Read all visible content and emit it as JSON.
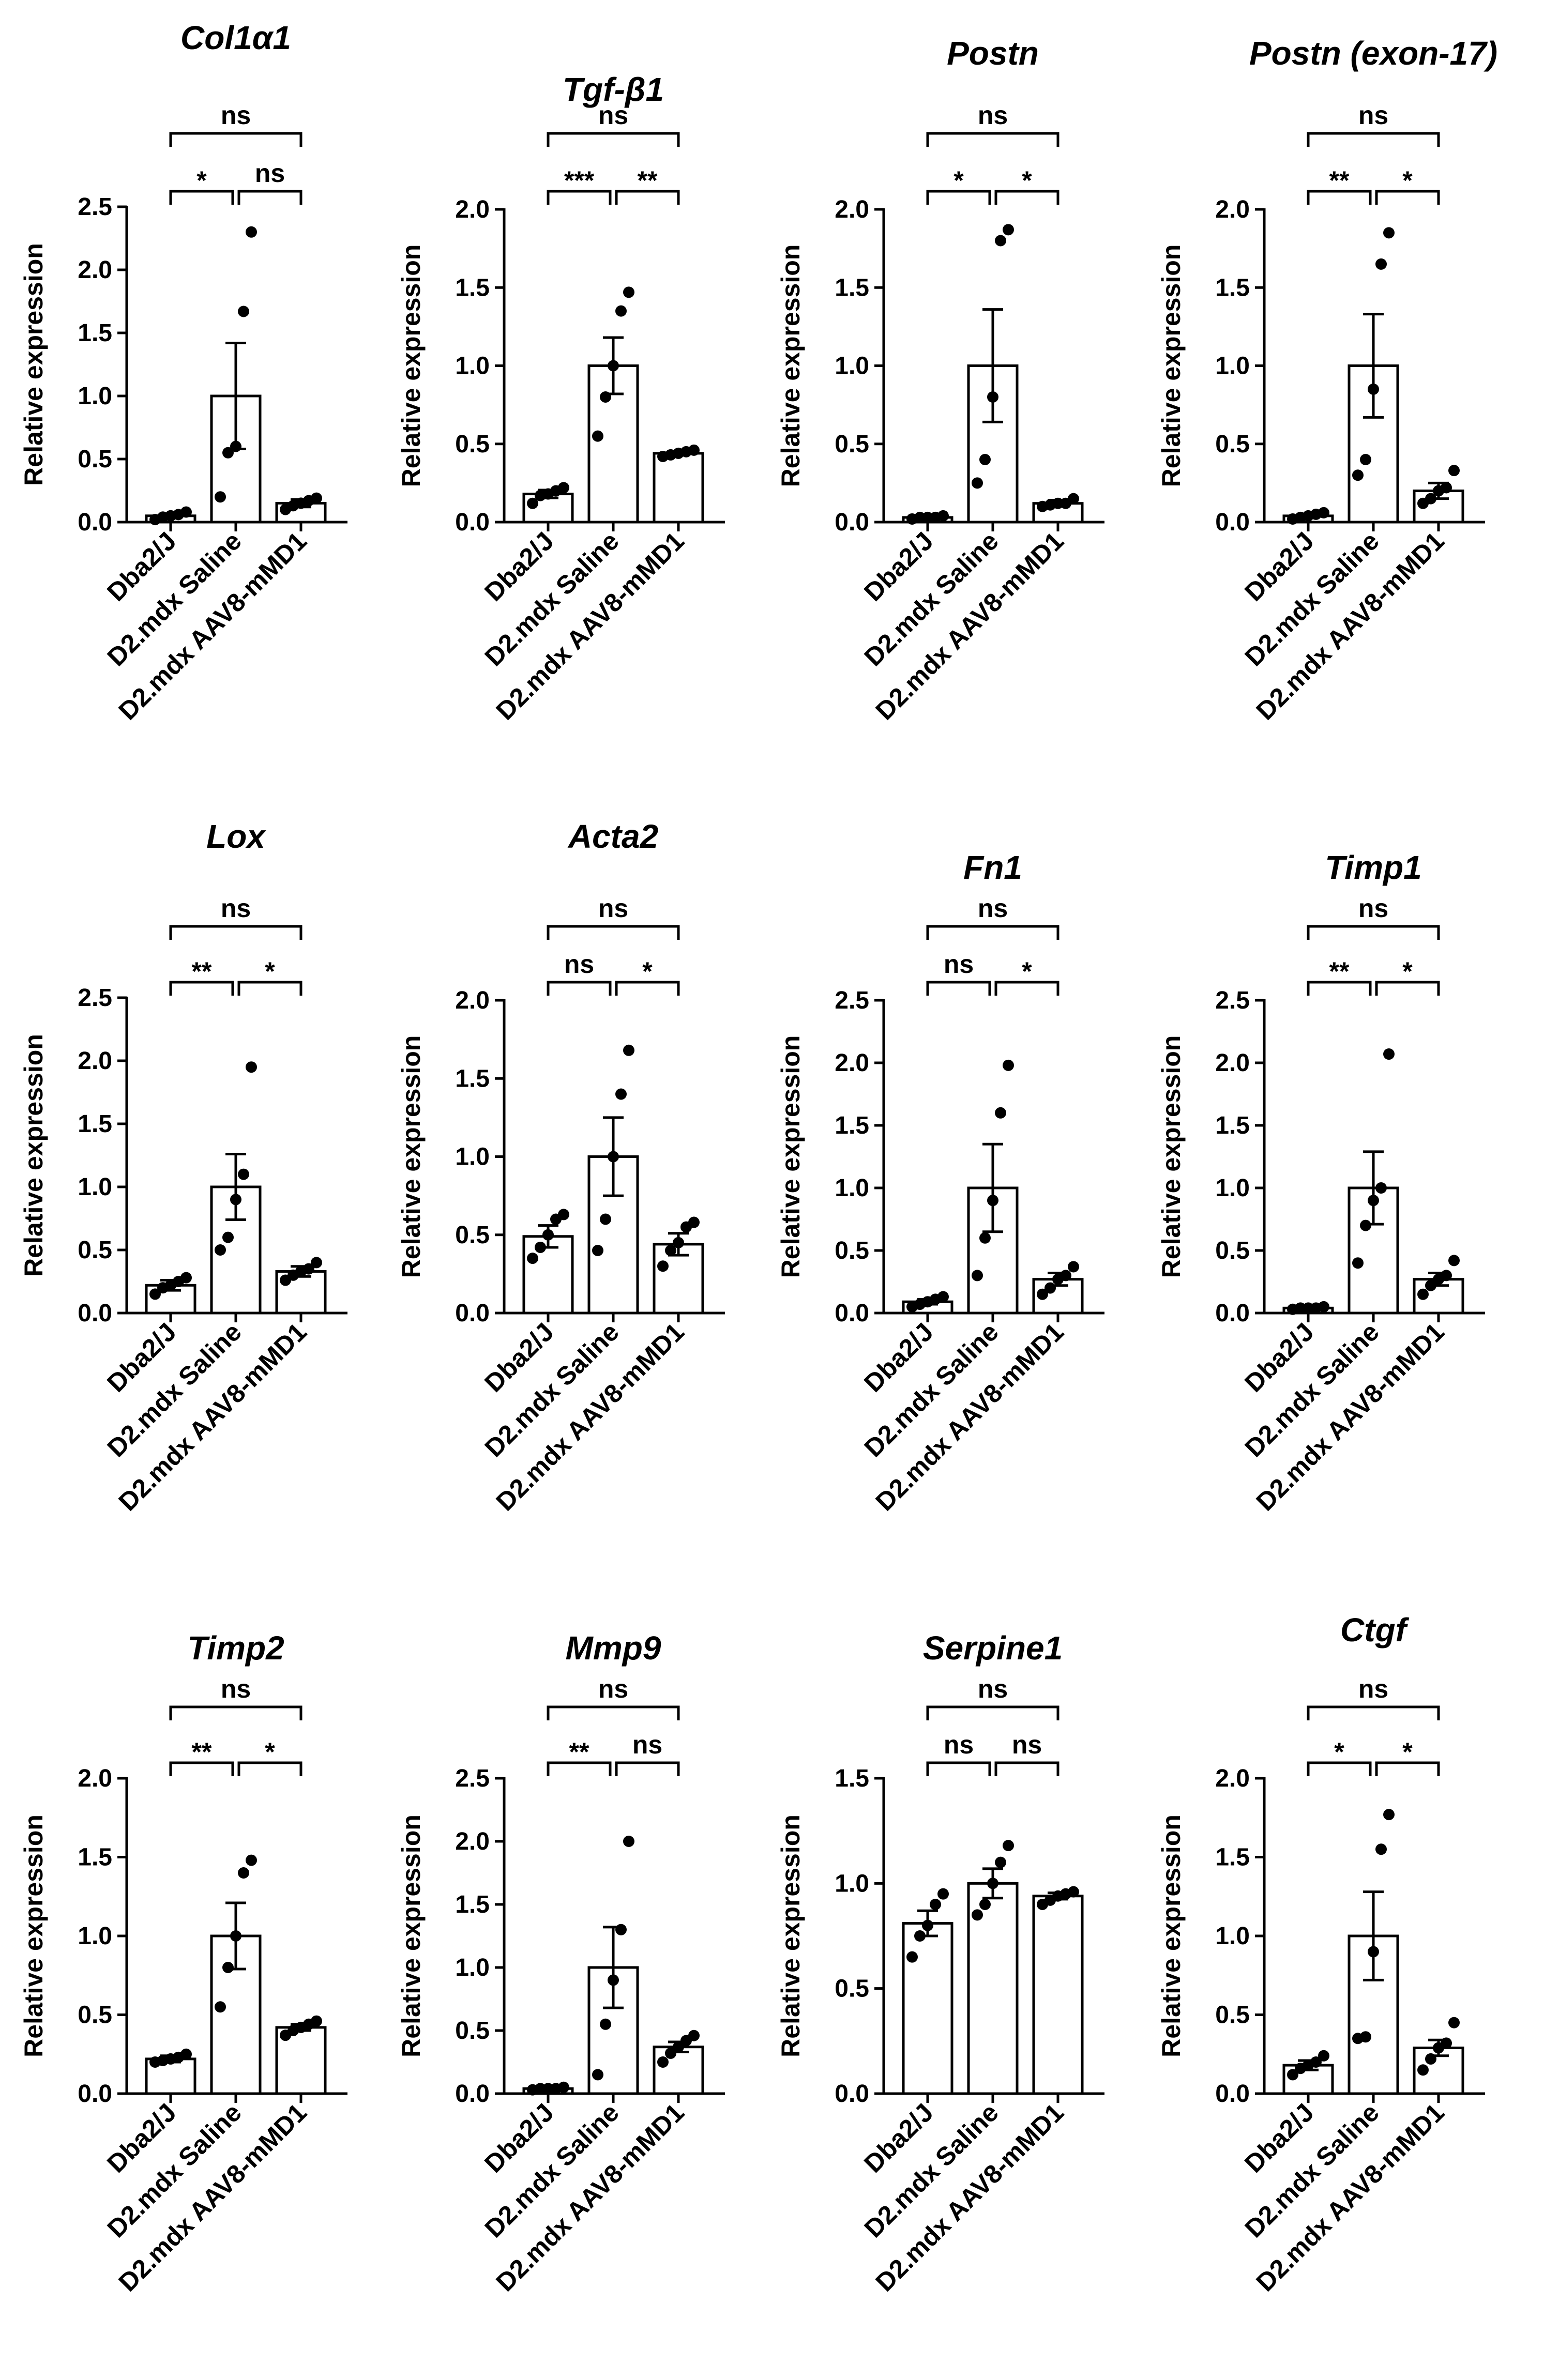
{
  "figure": {
    "groups": [
      "Dba2/J",
      "D2.mdx Saline",
      "D2.mdx AAV8-mMD1"
    ],
    "ylabel": "Relative expression"
  },
  "chart_data": [
    {
      "type": "bar",
      "title": "Col1α1",
      "ylabel": "Relative expression",
      "categories": [
        "Dba2/J",
        "D2.mdx Saline",
        "D2.mdx AAV8-mMD1"
      ],
      "ylim": [
        0,
        2.5
      ],
      "ticks": [
        "0.0",
        "0.5",
        "1.0",
        "1.5",
        "2.0",
        "2.5"
      ],
      "values": [
        0.05,
        1.0,
        0.15
      ],
      "errors": [
        0.015,
        0.42,
        0.03
      ],
      "points": [
        [
          0.02,
          0.04,
          0.05,
          0.06,
          0.08
        ],
        [
          0.2,
          0.55,
          0.6,
          1.67,
          2.3
        ],
        [
          0.1,
          0.13,
          0.15,
          0.17,
          0.19
        ]
      ],
      "significance": {
        "pair_12": "*",
        "pair_23": "ns",
        "pair_13": "ns"
      }
    },
    {
      "type": "bar",
      "title": "Tgf-β1",
      "ylabel": "Relative expression",
      "categories": [
        "Dba2/J",
        "D2.mdx Saline",
        "D2.mdx AAV8-mMD1"
      ],
      "ylim": [
        0,
        2.0
      ],
      "ticks": [
        "0.0",
        "0.5",
        "1.0",
        "1.5",
        "2.0"
      ],
      "values": [
        0.18,
        1.0,
        0.44
      ],
      "errors": [
        0.025,
        0.18,
        0.01
      ],
      "points": [
        [
          0.12,
          0.17,
          0.18,
          0.2,
          0.22
        ],
        [
          0.55,
          0.8,
          1.0,
          1.35,
          1.47
        ],
        [
          0.42,
          0.43,
          0.44,
          0.45,
          0.46
        ]
      ],
      "significance": {
        "pair_12": "***",
        "pair_23": "**",
        "pair_13": "ns"
      }
    },
    {
      "type": "bar",
      "title": "Postn",
      "ylabel": "Relative expression",
      "categories": [
        "Dba2/J",
        "D2.mdx Saline",
        "D2.mdx AAV8-mMD1"
      ],
      "ylim": [
        0,
        2.0
      ],
      "ticks": [
        "0.0",
        "0.5",
        "1.0",
        "1.5",
        "2.0"
      ],
      "values": [
        0.03,
        1.0,
        0.12
      ],
      "errors": [
        0.005,
        0.36,
        0.02
      ],
      "points": [
        [
          0.02,
          0.03,
          0.03,
          0.03,
          0.04
        ],
        [
          0.25,
          0.4,
          0.8,
          1.8,
          1.87
        ],
        [
          0.1,
          0.11,
          0.12,
          0.12,
          0.15
        ]
      ],
      "significance": {
        "pair_12": "*",
        "pair_23": "*",
        "pair_13": "ns"
      }
    },
    {
      "type": "bar",
      "title": "Postn (exon-17)",
      "ylabel": "Relative expression",
      "categories": [
        "Dba2/J",
        "D2.mdx Saline",
        "D2.mdx AAV8-mMD1"
      ],
      "ylim": [
        0,
        2.0
      ],
      "ticks": [
        "0.0",
        "0.5",
        "1.0",
        "1.5",
        "2.0"
      ],
      "values": [
        0.04,
        1.0,
        0.2
      ],
      "errors": [
        0.01,
        0.33,
        0.05
      ],
      "points": [
        [
          0.02,
          0.03,
          0.04,
          0.05,
          0.06
        ],
        [
          0.3,
          0.4,
          0.85,
          1.65,
          1.85
        ],
        [
          0.12,
          0.15,
          0.2,
          0.22,
          0.33
        ]
      ],
      "significance": {
        "pair_12": "**",
        "pair_23": "*",
        "pair_13": "ns"
      }
    },
    {
      "type": "bar",
      "title": "Lox",
      "ylabel": "Relative expression",
      "categories": [
        "Dba2/J",
        "D2.mdx Saline",
        "D2.mdx AAV8-mMD1"
      ],
      "ylim": [
        0,
        2.5
      ],
      "ticks": [
        "0.0",
        "0.5",
        "1.0",
        "1.5",
        "2.0",
        "2.5"
      ],
      "values": [
        0.22,
        1.0,
        0.33
      ],
      "errors": [
        0.04,
        0.26,
        0.04
      ],
      "points": [
        [
          0.15,
          0.2,
          0.22,
          0.25,
          0.28
        ],
        [
          0.5,
          0.6,
          0.9,
          1.1,
          1.95
        ],
        [
          0.26,
          0.3,
          0.33,
          0.35,
          0.4
        ]
      ],
      "significance": {
        "pair_12": "**",
        "pair_23": "*",
        "pair_13": "ns"
      }
    },
    {
      "type": "bar",
      "title": "Acta2",
      "ylabel": "Relative expression",
      "categories": [
        "Dba2/J",
        "D2.mdx Saline",
        "D2.mdx AAV8-mMD1"
      ],
      "ylim": [
        0,
        2.0
      ],
      "ticks": [
        "0.0",
        "0.5",
        "1.0",
        "1.5",
        "2.0"
      ],
      "values": [
        0.49,
        1.0,
        0.44
      ],
      "errors": [
        0.07,
        0.25,
        0.07
      ],
      "points": [
        [
          0.35,
          0.42,
          0.5,
          0.6,
          0.63
        ],
        [
          0.4,
          0.6,
          1.0,
          1.4,
          1.68
        ],
        [
          0.3,
          0.4,
          0.45,
          0.55,
          0.58
        ]
      ],
      "significance": {
        "pair_12": "ns",
        "pair_23": "*",
        "pair_13": "ns"
      }
    },
    {
      "type": "bar",
      "title": "Fn1",
      "ylabel": "Relative expression",
      "categories": [
        "Dba2/J",
        "D2.mdx Saline",
        "D2.mdx AAV8-mMD1"
      ],
      "ylim": [
        0,
        2.5
      ],
      "ticks": [
        "0.0",
        "0.5",
        "1.0",
        "1.5",
        "2.0",
        "2.5"
      ],
      "values": [
        0.09,
        1.0,
        0.27
      ],
      "errors": [
        0.02,
        0.35,
        0.05
      ],
      "points": [
        [
          0.05,
          0.07,
          0.09,
          0.11,
          0.13
        ],
        [
          0.3,
          0.6,
          0.9,
          1.6,
          1.98
        ],
        [
          0.15,
          0.2,
          0.27,
          0.3,
          0.37
        ]
      ],
      "significance": {
        "pair_12": "ns",
        "pair_23": "*",
        "pair_13": "ns"
      }
    },
    {
      "type": "bar",
      "title": "Timp1",
      "ylabel": "Relative expression",
      "categories": [
        "Dba2/J",
        "D2.mdx Saline",
        "D2.mdx AAV8-mMD1"
      ],
      "ylim": [
        0,
        2.5
      ],
      "ticks": [
        "0.0",
        "0.5",
        "1.0",
        "1.5",
        "2.0",
        "2.5"
      ],
      "values": [
        0.04,
        1.0,
        0.27
      ],
      "errors": [
        0.005,
        0.29,
        0.05
      ],
      "points": [
        [
          0.03,
          0.04,
          0.04,
          0.04,
          0.05
        ],
        [
          0.4,
          0.7,
          0.9,
          1.0,
          2.07
        ],
        [
          0.15,
          0.22,
          0.27,
          0.3,
          0.42
        ]
      ],
      "significance": {
        "pair_12": "**",
        "pair_23": "*",
        "pair_13": "ns"
      }
    },
    {
      "type": "bar",
      "title": "Timp2",
      "ylabel": "Relative expression",
      "categories": [
        "Dba2/J",
        "D2.mdx Saline",
        "D2.mdx AAV8-mMD1"
      ],
      "ylim": [
        0,
        2.0
      ],
      "ticks": [
        "0.0",
        "0.5",
        "1.0",
        "1.5",
        "2.0"
      ],
      "values": [
        0.22,
        1.0,
        0.42
      ],
      "errors": [
        0.02,
        0.21,
        0.02
      ],
      "points": [
        [
          0.2,
          0.21,
          0.22,
          0.23,
          0.25
        ],
        [
          0.55,
          0.8,
          1.0,
          1.4,
          1.48
        ],
        [
          0.37,
          0.4,
          0.42,
          0.44,
          0.46
        ]
      ],
      "significance": {
        "pair_12": "**",
        "pair_23": "*",
        "pair_13": "ns"
      }
    },
    {
      "type": "bar",
      "title": "Mmp9",
      "ylabel": "Relative expression",
      "categories": [
        "Dba2/J",
        "D2.mdx Saline",
        "D2.mdx AAV8-mMD1"
      ],
      "ylim": [
        0,
        2.5
      ],
      "ticks": [
        "0.0",
        "0.5",
        "1.0",
        "1.5",
        "2.0",
        "2.5"
      ],
      "values": [
        0.04,
        1.0,
        0.37
      ],
      "errors": [
        0.005,
        0.32,
        0.04
      ],
      "points": [
        [
          0.03,
          0.04,
          0.04,
          0.04,
          0.05
        ],
        [
          0.15,
          0.55,
          0.9,
          1.3,
          2.0
        ],
        [
          0.25,
          0.32,
          0.37,
          0.42,
          0.46
        ]
      ],
      "significance": {
        "pair_12": "**",
        "pair_23": "ns",
        "pair_13": "ns"
      }
    },
    {
      "type": "bar",
      "title": "Serpine1",
      "ylabel": "Relative expression",
      "categories": [
        "Dba2/J",
        "D2.mdx Saline",
        "D2.mdx AAV8-mMD1"
      ],
      "ylim": [
        0,
        1.5
      ],
      "ticks": [
        "0.0",
        "0.5",
        "1.0",
        "1.5"
      ],
      "values": [
        0.81,
        1.0,
        0.94
      ],
      "errors": [
        0.06,
        0.07,
        0.015
      ],
      "points": [
        [
          0.65,
          0.75,
          0.8,
          0.9,
          0.95
        ],
        [
          0.85,
          0.9,
          1.0,
          1.1,
          1.18
        ],
        [
          0.9,
          0.92,
          0.94,
          0.95,
          0.96
        ]
      ],
      "significance": {
        "pair_12": "ns",
        "pair_23": "ns",
        "pair_13": "ns"
      }
    },
    {
      "type": "bar",
      "title": "Ctgf",
      "ylabel": "Relative expression",
      "categories": [
        "Dba2/J",
        "D2.mdx Saline",
        "D2.mdx AAV8-mMD1"
      ],
      "ylim": [
        0,
        2.0
      ],
      "ticks": [
        "0.0",
        "0.5",
        "1.0",
        "1.5",
        "2.0"
      ],
      "values": [
        0.18,
        1.0,
        0.29
      ],
      "errors": [
        0.03,
        0.28,
        0.05
      ],
      "points": [
        [
          0.12,
          0.16,
          0.18,
          0.2,
          0.24
        ],
        [
          0.35,
          0.36,
          0.9,
          1.55,
          1.77
        ],
        [
          0.15,
          0.22,
          0.29,
          0.32,
          0.45
        ]
      ],
      "significance": {
        "pair_12": "*",
        "pair_23": "*",
        "pair_13": "ns"
      }
    }
  ]
}
